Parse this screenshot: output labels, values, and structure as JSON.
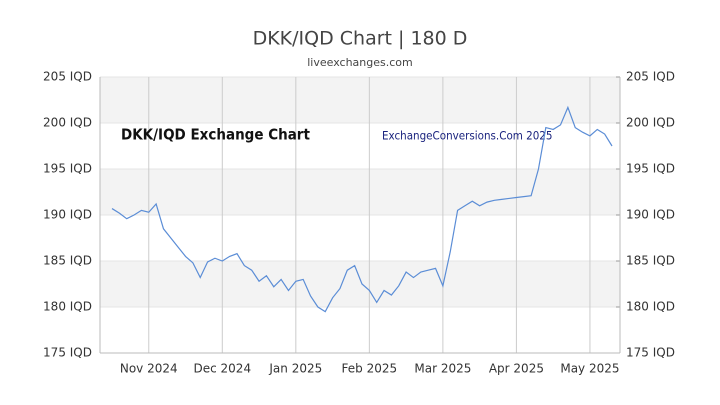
{
  "chart_data": {
    "type": "line",
    "title": "DKK/IQD Chart | 180 D",
    "subtitle": "liveexchanges.com",
    "annotations": [
      "DKK/IQD Exchange Chart",
      "ExchangeConversions.Com 2025"
    ],
    "categories": [
      null,
      null,
      null,
      null,
      null,
      "Nov 2024",
      null,
      null,
      null,
      null,
      null,
      null,
      null,
      null,
      null,
      "Dec 2024",
      null,
      null,
      null,
      null,
      null,
      null,
      null,
      null,
      null,
      "Jan 2025",
      null,
      null,
      null,
      null,
      null,
      null,
      null,
      null,
      null,
      "Feb 2025",
      null,
      null,
      null,
      null,
      null,
      null,
      null,
      null,
      null,
      "Mar 2025",
      null,
      null,
      null,
      null,
      null,
      null,
      null,
      null,
      null,
      "Apr 2025",
      null,
      null,
      null,
      null,
      null,
      null,
      null,
      null,
      null,
      "May 2025",
      null,
      null,
      null
    ],
    "values": [
      190.7,
      190.2,
      189.6,
      190.0,
      190.5,
      190.3,
      191.2,
      188.5,
      187.5,
      186.5,
      185.5,
      184.8,
      183.2,
      184.9,
      185.3,
      185.0,
      185.5,
      185.8,
      184.5,
      184.0,
      182.8,
      183.4,
      182.2,
      183.0,
      181.8,
      182.8,
      183.0,
      181.2,
      180.0,
      179.5,
      181.0,
      182.0,
      184.0,
      184.5,
      182.5,
      181.8,
      180.5,
      181.8,
      181.3,
      182.3,
      183.8,
      183.2,
      183.8,
      184.0,
      184.2,
      182.3,
      186.0,
      190.5,
      191.0,
      191.5,
      191.0,
      191.4,
      191.6,
      191.7,
      191.8,
      191.9,
      192.0,
      192.1,
      195.0,
      199.5,
      199.3,
      199.8,
      201.7,
      199.5,
      199.0,
      198.6,
      199.3,
      198.8,
      197.5
    ],
    "color": "#5b8dd6",
    "ylim": [
      175,
      205
    ],
    "yticks": [
      {
        "value": 175,
        "label": "175 IQD"
      },
      {
        "value": 180,
        "label": "180 IQD"
      },
      {
        "value": 185,
        "label": "185 IQD"
      },
      {
        "value": 190,
        "label": "190 IQD"
      },
      {
        "value": 195,
        "label": "195 IQD"
      },
      {
        "value": 200,
        "label": "200 IQD"
      },
      {
        "value": 205,
        "label": "205 IQD"
      }
    ],
    "y2lim": [
      175,
      205
    ],
    "y2ticks": [
      {
        "value": 175,
        "label": "175 IQD"
      },
      {
        "value": 180,
        "label": "180 IQD"
      },
      {
        "value": 185,
        "label": "185 IQD"
      },
      {
        "value": 190,
        "label": "190 IQD"
      },
      {
        "value": 195,
        "label": "195 IQD"
      },
      {
        "value": 200,
        "label": "200 IQD"
      },
      {
        "value": 205,
        "label": "205 IQD"
      }
    ],
    "grid": true
  }
}
